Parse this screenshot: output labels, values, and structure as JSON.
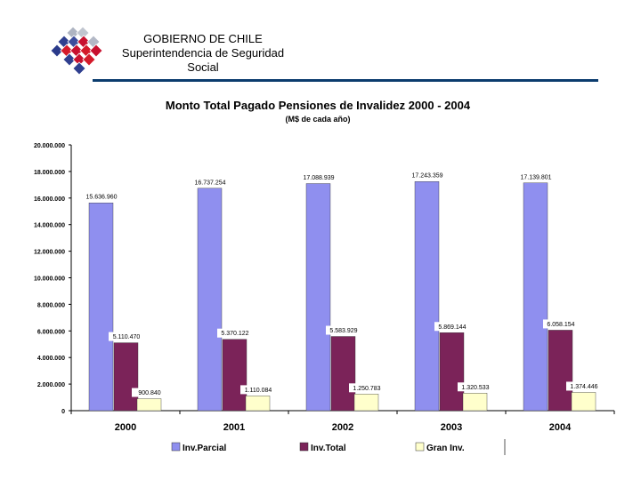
{
  "header": {
    "org_line1": "GOBIERNO DE CHILE",
    "org_line2": "Superintendencia de Seguridad",
    "org_line3": "Social",
    "rule_color": "#0b3c6e",
    "logo": "chile-government-logo"
  },
  "chart_data": {
    "type": "bar",
    "title": "Monto Total Pagado Pensiones de Invalidez 2000 - 2004",
    "subtitle": "(M$ de cada año)",
    "xlabel": "",
    "ylabel": "",
    "ylim": [
      0,
      20000000
    ],
    "yticks": [
      0,
      2000000,
      4000000,
      6000000,
      8000000,
      10000000,
      12000000,
      14000000,
      16000000,
      18000000,
      20000000
    ],
    "ytick_labels": [
      "0",
      "2.000.000",
      "4.000.000",
      "6.000.000",
      "8.000.000",
      "10.000.000",
      "12.000.000",
      "14.000.000",
      "16.000.000",
      "18.000.000",
      "20.000.000"
    ],
    "categories": [
      "2000",
      "2001",
      "2002",
      "2003",
      "2004"
    ],
    "series": [
      {
        "name": "Inv.Parcial",
        "color": "#8f8fef",
        "values": [
          15636960,
          16737254,
          17088939,
          17243359,
          17139801
        ],
        "labels": [
          "15.636.960",
          "16.737.254",
          "17.088.939",
          "17.243.359",
          "17.139.801"
        ]
      },
      {
        "name": "Inv.Total",
        "color": "#7b2359",
        "values": [
          5110470,
          5370122,
          5583929,
          5869144,
          6058154
        ],
        "labels": [
          "5.110.470",
          "5.370.122",
          "5.583.929",
          "5.869.144",
          "6.058.154"
        ]
      },
      {
        "name": "Gran Inv.",
        "color": "#ffffcc",
        "values": [
          900840,
          1110084,
          1250783,
          1320533,
          1374446
        ],
        "labels": [
          "900.840",
          "1.110.084",
          "1.250.783",
          "1.320.533",
          "1.374.446"
        ]
      }
    ],
    "legend_position": "bottom",
    "grid": false
  }
}
